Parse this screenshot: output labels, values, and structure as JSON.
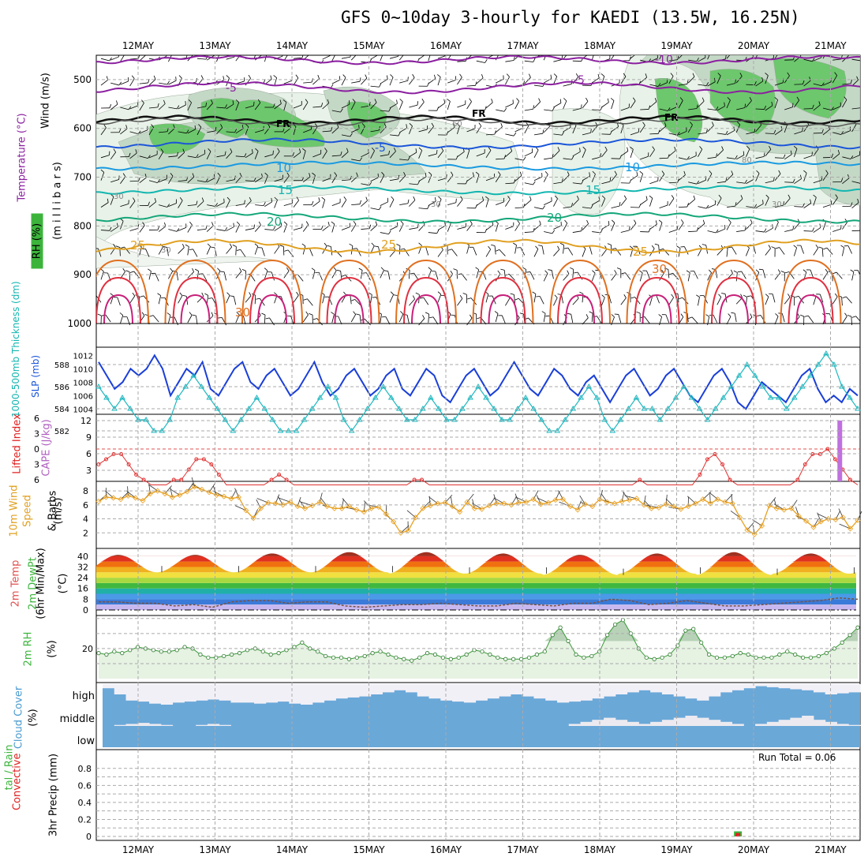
{
  "title": "GFS 0~10day 3-hourly for KAEDI (13.5W, 16.25N)",
  "date_labels": [
    "12MAY",
    "13MAY",
    "14MAY",
    "15MAY",
    "16MAY",
    "17MAY",
    "18MAY",
    "19MAY",
    "20MAY",
    "21MAY"
  ],
  "ylabels": {
    "upper_wind": "Wind (m/s)",
    "upper_temp": "Temperature (°C)",
    "upper_rh": "RH (%)",
    "upper_mb": "(m i l l i b a r s)",
    "thick": "1000-500mb Thickness (dm)",
    "slp": "SLP (mb)",
    "li": "Lifted Index",
    "cape": "CAPE (J/kg)",
    "wind10_a": "10m Wind",
    "wind10_b": "Speed",
    "wind10_c": "& Barbs",
    "wind10_units": "(m/s)",
    "temp_a": "2m Temp",
    "temp_b": "2m DewPt",
    "temp_c": "(6hr Min/Max)",
    "temp_units": "(°C)",
    "rh2": "2m RH",
    "rh2_units": "(%)",
    "cloud": "Cloud Cover",
    "cloud_units": "(%)",
    "precip_a": "tal / Rain",
    "precip_b": "Convective",
    "precip_c": "3hr Precip (mm)"
  },
  "cloud_levels": [
    "high",
    "middle",
    "low"
  ],
  "run_total_label": "Run Total =",
  "run_total_value": "0.06",
  "chart_data": [
    {
      "type": "contour",
      "panel": "upper_air",
      "y_ticks": [
        "500",
        "600",
        "700",
        "800",
        "900",
        "1000"
      ],
      "temperature_labels": [
        "-10",
        "-5",
        "-5",
        "-5",
        "FR",
        "FR",
        "FR",
        "-5",
        "10",
        "10",
        "15",
        "15",
        "20",
        "20",
        "25",
        "25",
        "25",
        "30",
        "30"
      ],
      "rh_labels": [
        "60",
        "80",
        "30",
        "30",
        "30",
        "30"
      ]
    },
    {
      "type": "line",
      "panel": "thickness_slp",
      "thickness_ticks": [
        "588",
        "586",
        "584",
        "582"
      ],
      "slp_ticks": [
        "1012",
        "1010",
        "1008",
        "1006",
        "1004"
      ],
      "slp_mb": [
        1011,
        1009,
        1007,
        1008,
        1010,
        1009,
        1010,
        1012,
        1010,
        1006,
        1008,
        1010,
        1009,
        1011,
        1007,
        1006,
        1008,
        1010,
        1011,
        1008,
        1007,
        1009,
        1010,
        1008,
        1006,
        1007,
        1009,
        1011,
        1008,
        1006,
        1007,
        1009,
        1010,
        1008,
        1006,
        1007,
        1009,
        1010,
        1007,
        1006,
        1008,
        1010,
        1009,
        1006,
        1005,
        1007,
        1009,
        1010,
        1008,
        1006,
        1007,
        1009,
        1011,
        1009,
        1007,
        1006,
        1008,
        1010,
        1009,
        1007,
        1006,
        1008,
        1009,
        1007,
        1005,
        1007,
        1009,
        1010,
        1008,
        1006,
        1007,
        1009,
        1010,
        1008,
        1006,
        1005,
        1007,
        1009,
        1010,
        1008,
        1005,
        1004,
        1006,
        1008,
        1007,
        1006,
        1005,
        1007,
        1009,
        1010,
        1007,
        1005,
        1006,
        1005,
        1007,
        1006
      ],
      "thickness_dm": [
        586,
        585,
        584,
        585,
        584,
        583,
        583,
        582,
        582,
        583,
        585,
        586,
        587,
        586,
        585,
        584,
        583,
        582,
        583,
        584,
        585,
        584,
        583,
        582,
        582,
        582,
        583,
        584,
        585,
        586,
        585,
        583,
        582,
        583,
        584,
        585,
        586,
        585,
        584,
        583,
        583,
        584,
        585,
        584,
        583,
        583,
        584,
        585,
        586,
        585,
        584,
        583,
        583,
        584,
        585,
        584,
        583,
        582,
        582,
        583,
        584,
        585,
        586,
        585,
        583,
        582,
        583,
        584,
        585,
        584,
        584,
        583,
        584,
        585,
        586,
        585,
        584,
        583,
        584,
        585,
        586,
        587,
        588,
        587,
        586,
        585,
        585,
        584,
        585,
        586,
        587,
        588,
        589,
        588,
        586,
        585,
        584
      ]
    },
    {
      "type": "line",
      "panel": "lifted_index_cape",
      "li_ticks": [
        "-6",
        "-3",
        "0",
        "3",
        "6"
      ],
      "cape_ticks": [
        "12",
        "9",
        "6",
        "3"
      ],
      "li_values": [
        3,
        2,
        1,
        1,
        3,
        5,
        6,
        7,
        7,
        7,
        6,
        6,
        4,
        2,
        2,
        3,
        5,
        7,
        7,
        7,
        7,
        7,
        7,
        6,
        5,
        6,
        7,
        7,
        7,
        7,
        7,
        7,
        7,
        7,
        7,
        7,
        7,
        7,
        7,
        7,
        7,
        7,
        6,
        6,
        7,
        7,
        7,
        7,
        7,
        7,
        7,
        7,
        7,
        7,
        7,
        7,
        7,
        7,
        7,
        7,
        7,
        7,
        7,
        7,
        7,
        7,
        7,
        7,
        7,
        7,
        7,
        7,
        6,
        7,
        7,
        7,
        7,
        7,
        7,
        7,
        5,
        2,
        1,
        3,
        6,
        7,
        7,
        7,
        7,
        7,
        7,
        7,
        7,
        6,
        3,
        1,
        1,
        0,
        2,
        4,
        6,
        7
      ],
      "cape_bar": {
        "day_index": 9.5,
        "value": 12
      }
    },
    {
      "type": "line",
      "panel": "wind10m",
      "y_ticks": [
        "8",
        "6",
        "4",
        "2"
      ],
      "values": [
        6.5,
        7.1,
        7.0,
        6.8,
        7.3,
        7.0,
        6.6,
        7.6,
        8.0,
        7.6,
        7.1,
        7.4,
        7.9,
        8.6,
        8.2,
        7.8,
        7.4,
        7.2,
        6.9,
        7.1,
        5.2,
        4.1,
        5.5,
        6.3,
        6.2,
        6.0,
        6.4,
        5.8,
        5.5,
        5.9,
        6.4,
        5.8,
        5.5,
        5.5,
        5.8,
        5.3,
        5.0,
        5.5,
        5.7,
        4.7,
        3.6,
        2.0,
        2.3,
        4.2,
        5.5,
        5.9,
        6.2,
        6.3,
        5.8,
        5.0,
        6.4,
        5.5,
        5.4,
        5.9,
        6.2,
        6.2,
        6.0,
        6.3,
        6.4,
        6.8,
        6.1,
        6.3,
        6.7,
        6.8,
        5.8,
        5.3,
        6.1,
        5.8,
        6.8,
        6.4,
        6.2,
        6.5,
        6.7,
        6.9,
        6.0,
        5.5,
        5.6,
        6.1,
        5.8,
        5.4,
        5.8,
        6.2,
        6.8,
        6.2,
        6.8,
        6.4,
        6.2,
        4.2,
        2.4,
        1.8,
        3.0,
        5.9,
        5.5,
        5.3,
        5.5,
        4.4,
        3.7,
        2.8,
        3.6,
        4.0,
        3.9,
        4.2,
        2.6,
        3.8
      ]
    },
    {
      "type": "area",
      "panel": "temp2m",
      "y_ticks": [
        "40",
        "32",
        "24",
        "16",
        "8",
        "0"
      ],
      "temp_max": [
        41,
        41,
        42,
        43,
        43,
        42,
        41,
        42,
        43,
        42
      ],
      "temp_min": [
        28,
        28,
        28,
        28,
        27,
        27,
        26,
        27,
        26,
        27
      ],
      "dewpoint": [
        6,
        6,
        5,
        5,
        3,
        4,
        2,
        6,
        7,
        7,
        5,
        6,
        6,
        3,
        2,
        3,
        4,
        4,
        5,
        4,
        3,
        3,
        5,
        4,
        3,
        5,
        5,
        8,
        7,
        4,
        5,
        7,
        5,
        3,
        3,
        4,
        5,
        6,
        7,
        9,
        8
      ]
    },
    {
      "type": "area",
      "panel": "rh2m",
      "y_ticks": [
        "20"
      ],
      "values": [
        17,
        16,
        18,
        17,
        19,
        21,
        20,
        19,
        18,
        18,
        19,
        21,
        20,
        16,
        14,
        14,
        15,
        16,
        17,
        19,
        20,
        18,
        16,
        17,
        19,
        21,
        24,
        20,
        18,
        15,
        14,
        14,
        13,
        14,
        15,
        17,
        18,
        16,
        14,
        13,
        12,
        14,
        17,
        16,
        14,
        13,
        14,
        16,
        19,
        18,
        16,
        14,
        13,
        13,
        13,
        14,
        16,
        18,
        29,
        34,
        25,
        16,
        14,
        15,
        18,
        29,
        36,
        39,
        30,
        20,
        14,
        13,
        14,
        16,
        22,
        32,
        33,
        24,
        16,
        14,
        14,
        15,
        17,
        16,
        14,
        14,
        14,
        16,
        18,
        16,
        14,
        14,
        15,
        17,
        20,
        24,
        29,
        34
      ]
    },
    {
      "type": "bar",
      "panel": "cloud",
      "high": [
        80,
        50,
        20,
        15,
        5,
        0,
        10,
        15,
        20,
        25,
        20,
        10,
        10,
        5,
        10,
        15,
        5,
        0,
        10,
        20,
        30,
        35,
        40,
        50,
        60,
        70,
        60,
        40,
        30,
        20,
        15,
        10,
        20,
        30,
        40,
        50,
        40,
        30,
        20,
        10,
        15,
        20,
        30,
        40,
        50,
        60,
        70,
        60,
        50,
        40,
        30,
        20,
        40,
        60,
        70,
        80,
        90,
        85,
        80,
        75,
        70,
        60,
        50,
        55,
        60
      ],
      "middle": [
        0,
        5,
        10,
        15,
        10,
        5,
        0,
        0,
        5,
        10,
        5,
        0,
        0,
        0,
        0,
        0,
        0,
        0,
        0,
        0,
        0,
        0,
        0,
        0,
        0,
        0,
        0,
        0,
        0,
        0,
        0,
        0,
        0,
        0,
        0,
        0,
        0,
        0,
        0,
        0,
        10,
        20,
        30,
        40,
        30,
        20,
        10,
        20,
        30,
        40,
        50,
        40,
        30,
        20,
        10,
        0,
        10,
        20,
        30,
        40,
        50,
        30,
        20,
        10,
        5
      ],
      "low": [
        0,
        0,
        0,
        0,
        0,
        0,
        0,
        0,
        0,
        0,
        0,
        0,
        0,
        0,
        0,
        0,
        0,
        0,
        0,
        0,
        0,
        0,
        0,
        0,
        0,
        0,
        0,
        0,
        0,
        0,
        0,
        0,
        0,
        0,
        0,
        0,
        0,
        0,
        0,
        0,
        0,
        0,
        0,
        0,
        0,
        0,
        0,
        0,
        0,
        0,
        0,
        0,
        0,
        0,
        0,
        0,
        0,
        0,
        0,
        0,
        0,
        0,
        0,
        0,
        0
      ]
    },
    {
      "type": "bar",
      "panel": "precip",
      "y_ticks": [
        "0.8",
        "0.6",
        "0.4",
        "0.2",
        "0"
      ],
      "ylim": [
        0,
        0.9
      ],
      "total_mm": {
        "day_index": 8.35,
        "value": 0.06
      },
      "convective_mm": {
        "day_index": 8.35,
        "value": 0.04
      }
    }
  ]
}
